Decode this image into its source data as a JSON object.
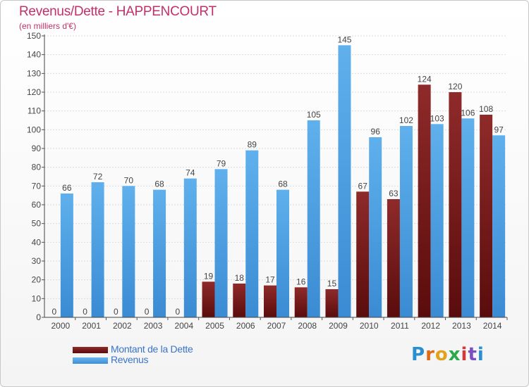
{
  "title": "Revenus/Dette - HAPPENCOURT",
  "subtitle": "(en milliers d'€)",
  "logo_text": "Proxiti",
  "legend": {
    "debt_label": "Montant de la Dette",
    "revenue_label": "Revenus"
  },
  "colors": {
    "title": "#c0306a",
    "debt": "#7a1a1a",
    "revenue": "#4a9ee2",
    "legend_text": "#3a74c9"
  },
  "chart_data": {
    "type": "bar",
    "title": "Revenus/Dette - HAPPENCOURT",
    "ylabel": "(en milliers d'€)",
    "xlabel": "",
    "ylim": [
      0,
      150
    ],
    "yticks": [
      0,
      10,
      20,
      30,
      40,
      50,
      60,
      70,
      80,
      90,
      100,
      110,
      120,
      130,
      140,
      150
    ],
    "grid": true,
    "legend_position": "bottom-left",
    "categories": [
      "2000",
      "2001",
      "2002",
      "2003",
      "2004",
      "2005",
      "2006",
      "2007",
      "2008",
      "2009",
      "2010",
      "2011",
      "2012",
      "2013",
      "2014"
    ],
    "series": [
      {
        "name": "Montant de la Dette",
        "values": [
          0,
          0,
          0,
          0,
          0,
          19,
          18,
          17,
          16,
          15,
          67,
          63,
          124,
          120,
          108
        ]
      },
      {
        "name": "Revenus",
        "values": [
          66,
          72,
          70,
          68,
          74,
          79,
          89,
          68,
          105,
          145,
          96,
          102,
          103,
          106,
          97
        ]
      }
    ]
  }
}
